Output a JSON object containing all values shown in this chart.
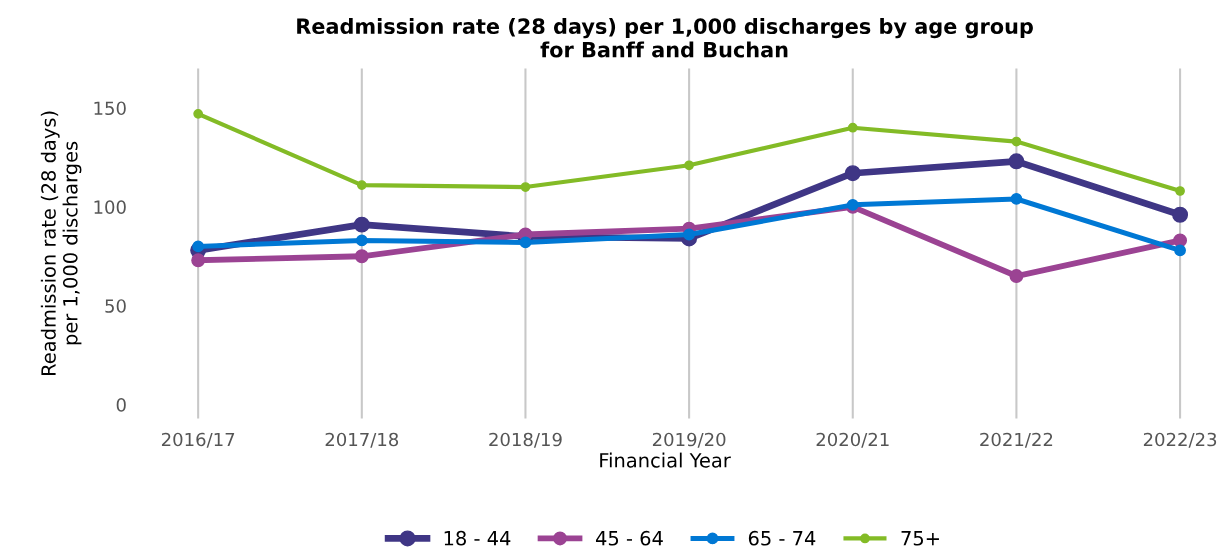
{
  "chart_data": {
    "type": "line",
    "title": "Readmission rate (28 days) per 1,000 discharges by age group\nfor Banff and Buchan",
    "xlabel": "Financial Year",
    "ylabel": "Readmission rate (28 days)\nper 1,000 discharges",
    "categories": [
      "2016/17",
      "2017/18",
      "2018/19",
      "2019/20",
      "2020/21",
      "2021/22",
      "2022/23"
    ],
    "series": [
      {
        "name": "18 - 44",
        "color": "#3f3685",
        "values": [
          78,
          91,
          85,
          84,
          117,
          123,
          96
        ]
      },
      {
        "name": "45 - 64",
        "color": "#9b4393",
        "values": [
          73,
          75,
          86,
          89,
          100,
          65,
          83
        ]
      },
      {
        "name": "65 - 74",
        "color": "#0078d4",
        "values": [
          80,
          83,
          82,
          86,
          101,
          104,
          78
        ]
      },
      {
        "name": "75+",
        "color": "#83bb26",
        "values": [
          147,
          111,
          110,
          121,
          140,
          133,
          108
        ]
      }
    ],
    "ylim": [
      -7,
      170
    ],
    "yticks": [
      0,
      50,
      100,
      150
    ],
    "grid": "x",
    "legend": "bottom",
    "marker": "circle",
    "line_style": "solid"
  }
}
